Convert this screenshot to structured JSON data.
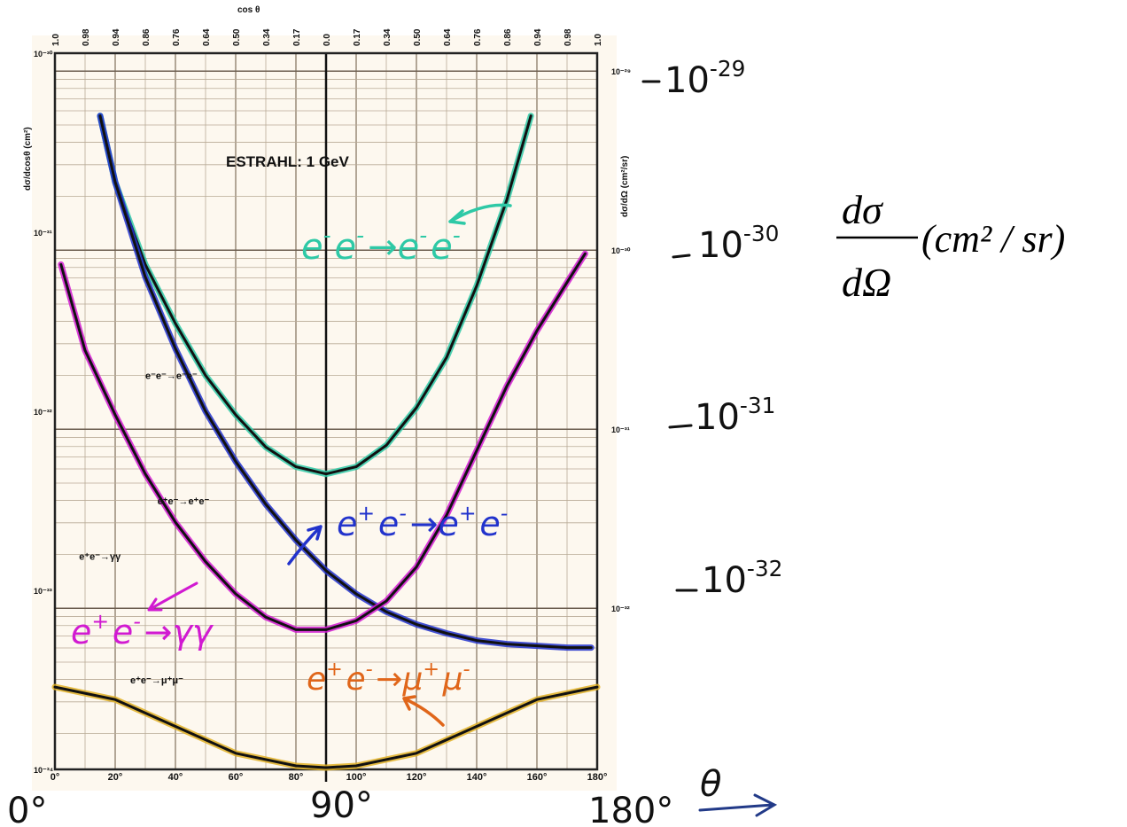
{
  "chart_data": {
    "type": "line",
    "title": "ESTRAHL: 1 GeV",
    "xlabel": "θ",
    "x_axis": {
      "range": [
        0,
        180
      ],
      "ticks": [
        {
          "value": 0,
          "label": "0°"
        },
        {
          "value": 20,
          "label": "20°"
        },
        {
          "value": 40,
          "label": "40°"
        },
        {
          "value": 60,
          "label": "60°"
        },
        {
          "value": 80,
          "label": "80°"
        },
        {
          "value": 100,
          "label": "100°"
        },
        {
          "value": 120,
          "label": "120°"
        },
        {
          "value": 140,
          "label": "140°"
        },
        {
          "value": 160,
          "label": "160°"
        },
        {
          "value": 180,
          "label": "180°"
        }
      ],
      "hand_labels": [
        {
          "value": 0,
          "label": "0°"
        },
        {
          "value": 90,
          "label": "90°"
        },
        {
          "value": 180,
          "label": "180°"
        }
      ]
    },
    "top_axis": {
      "label": "cos θ",
      "ticks": [
        "1.0",
        "0.98",
        "0.94",
        "0.86",
        "0.76",
        "0.64",
        "0.50",
        "0.34",
        "0.17",
        "0.0",
        "0.17",
        "0.34",
        "0.50",
        "0.64",
        "0.76",
        "0.86",
        "0.94",
        "0.98",
        "1.0"
      ]
    },
    "left_axis": {
      "label": "dσ/dcosθ (cm²)",
      "ticks": [
        "10⁻³⁰",
        "10⁻³¹",
        "10⁻³²",
        "10⁻³³",
        "10⁻³⁴"
      ]
    },
    "right_axis": {
      "label": "dσ/dΩ (cm²/sr)",
      "range_log10": [
        -32.9,
        -28.9
      ],
      "printed_ticks": [
        "10⁻²⁹",
        "10⁻³⁰",
        "10⁻³¹",
        "10⁻³²"
      ],
      "hand_ticks": [
        {
          "exp": -29,
          "base": "10",
          "sup": "-29"
        },
        {
          "exp": -30,
          "base": "10",
          "sup": "-30"
        },
        {
          "exp": -31,
          "base": "10",
          "sup": "-31"
        },
        {
          "exp": -32,
          "base": "10",
          "sup": "-32"
        }
      ],
      "formula": {
        "num": "dσ",
        "den": "dΩ",
        "unit": "(cm² / sr)"
      }
    },
    "series": [
      {
        "key": "bhabha",
        "color": "#111111",
        "highlight": "#2ec9a6",
        "x": [
          15,
          20,
          30,
          40,
          50,
          60,
          70,
          80,
          90,
          100,
          110,
          120,
          130,
          140,
          150,
          158
        ],
        "log": [
          -29.25,
          -29.62,
          -30.08,
          -30.41,
          -30.7,
          -30.92,
          -31.1,
          -31.21,
          -31.25,
          -31.21,
          -31.09,
          -30.88,
          -30.6,
          -30.2,
          -29.72,
          -29.25
        ]
      },
      {
        "key": "bhabha_other",
        "color": "#111111",
        "highlight": "#2233cc",
        "x": [
          15,
          20,
          30,
          40,
          50,
          60,
          70,
          80,
          90,
          100,
          110,
          120,
          130,
          140,
          150,
          160,
          170,
          178
        ],
        "log": [
          -29.25,
          -29.62,
          -30.15,
          -30.55,
          -30.9,
          -31.18,
          -31.42,
          -31.62,
          -31.79,
          -31.92,
          -32.02,
          -32.09,
          -32.14,
          -32.18,
          -32.2,
          -32.21,
          -32.22,
          -32.22
        ]
      },
      {
        "key": "gamma_gamma",
        "color": "#111111",
        "highlight": "#d11ad1",
        "x": [
          2,
          10,
          20,
          30,
          40,
          50,
          60,
          70,
          80,
          90,
          100,
          110,
          120,
          130,
          140,
          150,
          160,
          170,
          176
        ],
        "log": [
          -30.08,
          -30.56,
          -30.92,
          -31.25,
          -31.52,
          -31.74,
          -31.92,
          -32.05,
          -32.12,
          -32.12,
          -32.07,
          -31.96,
          -31.77,
          -31.48,
          -31.12,
          -30.76,
          -30.45,
          -30.18,
          -30.02
        ]
      },
      {
        "key": "mu_mu",
        "color": "#111111",
        "highlight": "#e0b024",
        "x": [
          0,
          20,
          40,
          60,
          80,
          90,
          100,
          120,
          140,
          160,
          180
        ],
        "log": [
          -32.44,
          -32.51,
          -32.66,
          -32.81,
          -32.88,
          -32.89,
          -32.88,
          -32.81,
          -32.66,
          -32.51,
          -32.44
        ]
      }
    ],
    "printed_labels": [
      {
        "text": "e⁻e⁻→e⁻e⁻",
        "x": 30,
        "log": -30.72
      },
      {
        "text": "e⁺e⁻→e⁺e⁻",
        "x": 34,
        "log": -31.42
      },
      {
        "text": "e⁺e⁻→γγ",
        "x": 8,
        "log": -31.73
      },
      {
        "text": "e⁺e⁻→μ⁺μ⁻",
        "x": 25,
        "log": -32.42
      }
    ],
    "hand_labels": [
      {
        "base": "e",
        "sup": "-",
        "base2": "e",
        "sup2": "-",
        "arrow": "→",
        "base3": "e",
        "sup3": "-",
        "base4": "e",
        "sup4": "-",
        "color": "#2ec9a6"
      },
      {
        "base": "e",
        "sup": "+",
        "base2": "e",
        "sup2": "-",
        "arrow": "→",
        "base3": "e",
        "sup3": "+",
        "base4": "e",
        "sup4": "-",
        "color": "#2233cc"
      },
      {
        "base": "e",
        "sup": "+",
        "base2": "e",
        "sup2": "-",
        "arrow": "→",
        "base3": "γ",
        "sup3": "",
        "base4": "γ",
        "sup4": "",
        "color": "#d11ad1"
      },
      {
        "base": "e",
        "sup": "+",
        "base2": "e",
        "sup2": "-",
        "arrow": "→",
        "base3": "μ",
        "sup3": "+",
        "base4": "μ",
        "sup4": "-",
        "color": "#e0661a"
      }
    ],
    "grid": true
  }
}
